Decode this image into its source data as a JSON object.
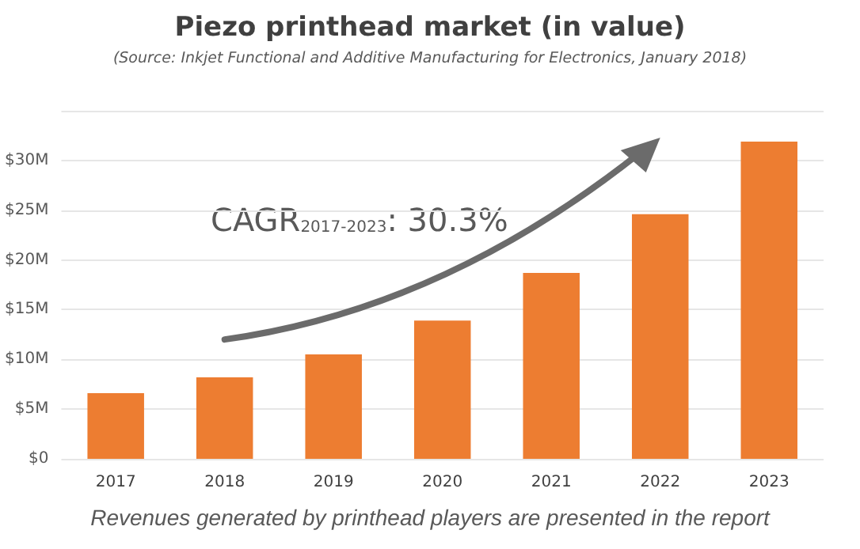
{
  "chart_data": {
    "type": "bar",
    "title": "Piezo printhead market (in value)",
    "subtitle": "(Source: Inkjet Functional and Additive Manufacturing for Electronics, January 2018)",
    "categories": [
      "2017",
      "2018",
      "2019",
      "2020",
      "2021",
      "2022",
      "2023"
    ],
    "values": [
      6.6,
      8.2,
      10.5,
      13.9,
      18.7,
      24.6,
      31.9
    ],
    "color": "#ed7d31",
    "ylim": [
      0,
      35
    ],
    "yticks": [
      {
        "value": 0,
        "label": "$0"
      },
      {
        "value": 5,
        "label": "$5M"
      },
      {
        "value": 10,
        "label": "$10M"
      },
      {
        "value": 15,
        "label": "$15M"
      },
      {
        "value": 20,
        "label": "$20M"
      },
      {
        "value": 25,
        "label": "$25M"
      },
      {
        "value": 30,
        "label": "$30M"
      },
      {
        "value": 35,
        "label": null
      }
    ],
    "grid": "y",
    "annotations": [
      "CAGR$_{2017-2023}$: 30.3%",
      "Revenues generated by printhead players are presented in the report"
    ]
  }
}
